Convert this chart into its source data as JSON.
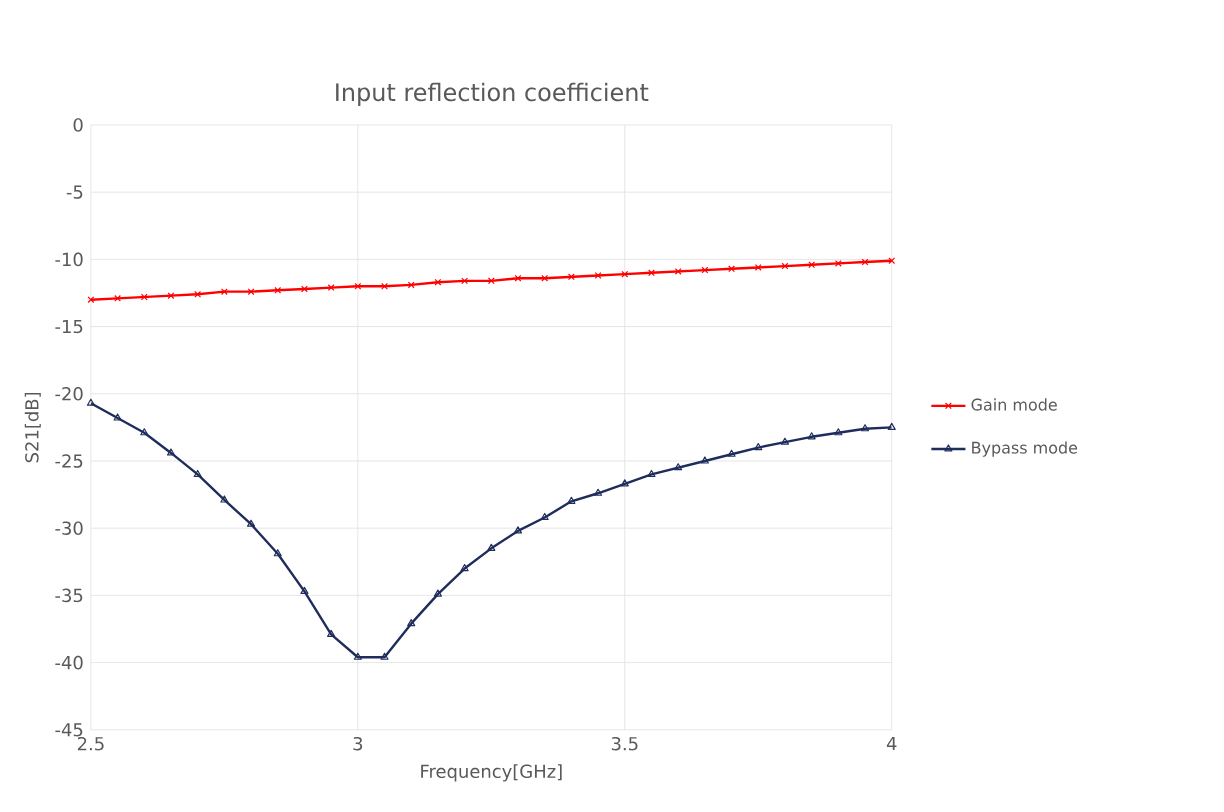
{
  "chart_data": {
    "type": "line",
    "title": "Input reflection coefficient",
    "xlabel": "Frequency[GHz]",
    "ylabel": "S21[dB]",
    "x": [
      2.5,
      2.55,
      2.6,
      2.65,
      2.7,
      2.75,
      2.8,
      2.85,
      2.9,
      2.95,
      3.0,
      3.05,
      3.1,
      3.15,
      3.2,
      3.25,
      3.3,
      3.35,
      3.4,
      3.45,
      3.5,
      3.55,
      3.6,
      3.65,
      3.7,
      3.75,
      3.8,
      3.85,
      3.9,
      3.95,
      4.0
    ],
    "series": [
      {
        "name": "Gain mode",
        "color": "#ff0000",
        "marker": "cross",
        "values": [
          -13.0,
          -12.9,
          -12.8,
          -12.7,
          -12.6,
          -12.4,
          -12.4,
          -12.3,
          -12.2,
          -12.1,
          -12.0,
          -12.0,
          -11.9,
          -11.7,
          -11.6,
          -11.6,
          -11.4,
          -11.4,
          -11.3,
          -11.2,
          -11.1,
          -11.0,
          -10.9,
          -10.8,
          -10.7,
          -10.6,
          -10.5,
          -10.4,
          -10.3,
          -10.2,
          -10.1
        ]
      },
      {
        "name": "Bypass mode",
        "color": "#1f2d5c",
        "marker": "triangle",
        "values": [
          -20.7,
          -21.8,
          -22.9,
          -24.4,
          -26.0,
          -27.9,
          -29.7,
          -31.9,
          -34.7,
          -37.9,
          -39.6,
          -39.6,
          -37.1,
          -34.9,
          -33.0,
          -31.5,
          -30.2,
          -29.2,
          -28.0,
          -27.4,
          -26.7,
          -26.0,
          -25.5,
          -25.0,
          -24.5,
          -24.0,
          -23.6,
          -23.2,
          -22.9,
          -22.6,
          -22.5
        ]
      }
    ],
    "xlim": [
      2.5,
      4
    ],
    "xticks": [
      2.5,
      3,
      3.5,
      4
    ],
    "ylim": [
      -45,
      0
    ],
    "yticks": [
      0,
      -5,
      -10,
      -15,
      -20,
      -25,
      -30,
      -35,
      -40,
      -45
    ],
    "grid": true,
    "legend": "right"
  }
}
